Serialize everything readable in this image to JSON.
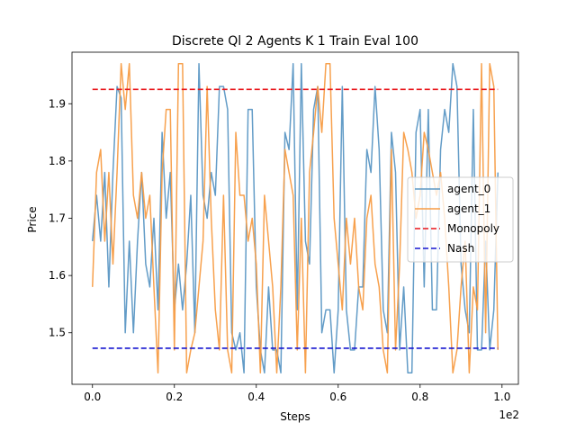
{
  "chart_data": {
    "type": "line",
    "title": "Discrete Ql 2 Agents K 1 Train Eval 100",
    "xlabel": "Steps",
    "ylabel": "Price",
    "x_offset_text": "1e2",
    "xlim": [
      -0.05,
      1.04
    ],
    "ylim": [
      1.41,
      1.99
    ],
    "x_ticks": [
      0.0,
      0.2,
      0.4,
      0.6,
      0.8,
      1.0
    ],
    "x_tick_labels": [
      "0.0",
      "0.2",
      "0.4",
      "0.6",
      "0.8",
      "1.0"
    ],
    "y_ticks": [
      1.5,
      1.6,
      1.7,
      1.8,
      1.9
    ],
    "y_tick_labels": [
      "1.5",
      "1.6",
      "1.7",
      "1.8",
      "1.9"
    ],
    "legend_position": "center-right",
    "series": [
      {
        "name": "agent_0",
        "color": "#5b97c4",
        "style": "solid",
        "x": [
          0,
          0.01,
          0.02,
          0.03,
          0.04,
          0.05,
          0.06,
          0.07,
          0.08,
          0.09,
          0.1,
          0.11,
          0.12,
          0.13,
          0.14,
          0.15,
          0.16,
          0.17,
          0.18,
          0.19,
          0.2,
          0.21,
          0.22,
          0.23,
          0.24,
          0.25,
          0.26,
          0.27,
          0.28,
          0.29,
          0.3,
          0.31,
          0.32,
          0.33,
          0.34,
          0.35,
          0.36,
          0.37,
          0.38,
          0.39,
          0.4,
          0.41,
          0.42,
          0.43,
          0.44,
          0.45,
          0.46,
          0.47,
          0.48,
          0.49,
          0.5,
          0.51,
          0.52,
          0.53,
          0.54,
          0.55,
          0.56,
          0.57,
          0.58,
          0.59,
          0.6,
          0.61,
          0.62,
          0.63,
          0.64,
          0.65,
          0.66,
          0.67,
          0.68,
          0.69,
          0.7,
          0.71,
          0.72,
          0.73,
          0.74,
          0.75,
          0.76,
          0.77,
          0.78,
          0.79,
          0.8,
          0.81,
          0.82,
          0.83,
          0.84,
          0.85,
          0.86,
          0.87,
          0.88,
          0.89,
          0.9,
          0.91,
          0.92,
          0.93,
          0.94,
          0.95,
          0.96,
          0.97,
          0.98,
          0.99
        ],
        "values": [
          1.66,
          1.74,
          1.66,
          1.78,
          1.58,
          1.78,
          1.93,
          1.91,
          1.5,
          1.66,
          1.5,
          1.66,
          1.78,
          1.62,
          1.58,
          1.7,
          1.54,
          1.85,
          1.7,
          1.78,
          1.54,
          1.62,
          1.54,
          1.62,
          1.74,
          1.5,
          1.97,
          1.74,
          1.7,
          1.78,
          1.74,
          1.93,
          1.93,
          1.89,
          1.5,
          1.47,
          1.5,
          1.43,
          1.89,
          1.89,
          1.58,
          1.47,
          1.43,
          1.58,
          1.47,
          1.47,
          1.43,
          1.85,
          1.82,
          1.97,
          1.54,
          1.97,
          1.66,
          1.62,
          1.89,
          1.93,
          1.5,
          1.54,
          1.54,
          1.43,
          1.54,
          1.93,
          1.54,
          1.47,
          1.47,
          1.58,
          1.58,
          1.82,
          1.78,
          1.93,
          1.82,
          1.54,
          1.5,
          1.85,
          1.78,
          1.47,
          1.58,
          1.43,
          1.43,
          1.85,
          1.89,
          1.58,
          1.89,
          1.54,
          1.54,
          1.82,
          1.89,
          1.85,
          1.97,
          1.93,
          1.62,
          1.54,
          1.5,
          1.89,
          1.47,
          1.47,
          1.66,
          1.47,
          1.54,
          1.78
        ]
      },
      {
        "name": "agent_1",
        "color": "#f79c45",
        "style": "solid",
        "x": [
          0,
          0.01,
          0.02,
          0.03,
          0.04,
          0.05,
          0.06,
          0.07,
          0.08,
          0.09,
          0.1,
          0.11,
          0.12,
          0.13,
          0.14,
          0.15,
          0.16,
          0.17,
          0.18,
          0.19,
          0.2,
          0.21,
          0.22,
          0.23,
          0.24,
          0.25,
          0.26,
          0.27,
          0.28,
          0.29,
          0.3,
          0.31,
          0.32,
          0.33,
          0.34,
          0.35,
          0.36,
          0.37,
          0.38,
          0.39,
          0.4,
          0.41,
          0.42,
          0.43,
          0.44,
          0.45,
          0.46,
          0.47,
          0.48,
          0.49,
          0.5,
          0.51,
          0.52,
          0.53,
          0.54,
          0.55,
          0.56,
          0.57,
          0.58,
          0.59,
          0.6,
          0.61,
          0.62,
          0.63,
          0.64,
          0.65,
          0.66,
          0.67,
          0.68,
          0.69,
          0.7,
          0.71,
          0.72,
          0.73,
          0.74,
          0.75,
          0.76,
          0.77,
          0.78,
          0.79,
          0.8,
          0.81,
          0.82,
          0.83,
          0.84,
          0.85,
          0.86,
          0.87,
          0.88,
          0.89,
          0.9,
          0.91,
          0.92,
          0.93,
          0.94,
          0.95,
          0.96,
          0.97,
          0.98,
          0.99
        ],
        "values": [
          1.58,
          1.78,
          1.82,
          1.66,
          1.78,
          1.62,
          1.78,
          1.97,
          1.89,
          1.97,
          1.74,
          1.7,
          1.78,
          1.7,
          1.74,
          1.58,
          1.43,
          1.78,
          1.89,
          1.89,
          1.47,
          1.97,
          1.97,
          1.43,
          1.47,
          1.5,
          1.58,
          1.66,
          1.93,
          1.7,
          1.54,
          1.47,
          1.74,
          1.47,
          1.43,
          1.85,
          1.74,
          1.74,
          1.66,
          1.7,
          1.62,
          1.43,
          1.74,
          1.66,
          1.58,
          1.43,
          1.58,
          1.82,
          1.78,
          1.74,
          1.47,
          1.7,
          1.43,
          1.78,
          1.85,
          1.93,
          1.85,
          1.97,
          1.97,
          1.7,
          1.62,
          1.54,
          1.7,
          1.62,
          1.7,
          1.58,
          1.54,
          1.7,
          1.74,
          1.62,
          1.58,
          1.47,
          1.43,
          1.82,
          1.47,
          1.62,
          1.85,
          1.82,
          1.78,
          1.7,
          1.74,
          1.85,
          1.82,
          1.78,
          1.74,
          1.78,
          1.7,
          1.58,
          1.43,
          1.47,
          1.58,
          1.66,
          1.43,
          1.58,
          1.54,
          1.97,
          1.5,
          1.97,
          1.93,
          1.47
        ]
      },
      {
        "name": "Monopoly",
        "color": "#e8141a",
        "style": "dashed",
        "x": [
          0,
          0.99
        ],
        "values": [
          1.925,
          1.925
        ]
      },
      {
        "name": "Nash",
        "color": "#1515d0",
        "style": "dashed",
        "x": [
          0,
          0.99
        ],
        "values": [
          1.473,
          1.473
        ]
      }
    ]
  }
}
